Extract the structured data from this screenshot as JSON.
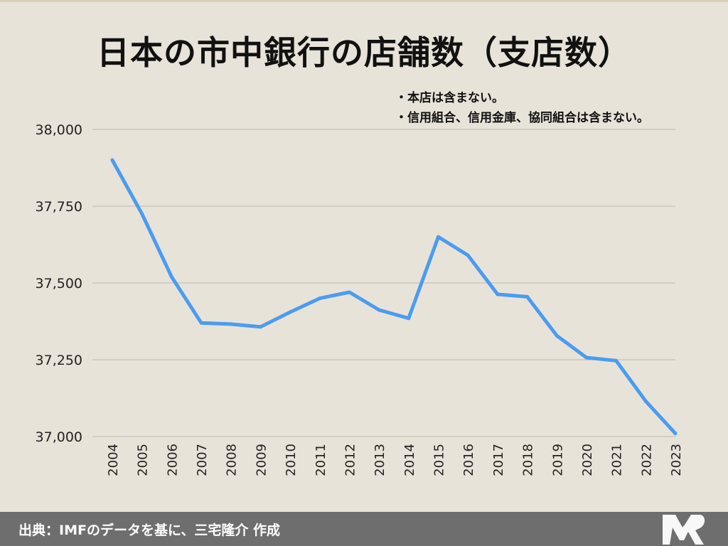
{
  "title": "日本の市中銀行の店舗数（支店数）",
  "notes": [
    "・本店は含まない。",
    "・信用組合、信用金庫、協同組合は含まない。"
  ],
  "footer": {
    "source": "出典：IMFのデータを基に、三宅隆介 作成",
    "logo_icon": "stylized-mr-logo-icon"
  },
  "colors": {
    "line": "#4b9cf0",
    "background": "#e8e3d9",
    "grid": "#bdb8ae",
    "footer": "#6e6e6e"
  },
  "chart_data": {
    "type": "line",
    "title": "日本の市中銀行の店舗数（支店数）",
    "xlabel": "",
    "ylabel": "",
    "x": [
      "2004",
      "2005",
      "2006",
      "2007",
      "2008",
      "2009",
      "2010",
      "2011",
      "2012",
      "2013",
      "2014",
      "2015",
      "2016",
      "2017",
      "2018",
      "2019",
      "2020",
      "2021",
      "2022",
      "2023"
    ],
    "series": [
      {
        "values": [
          37900,
          37725,
          37520,
          37370,
          37366,
          37357,
          37405,
          37450,
          37470,
          37412,
          37385,
          37650,
          37590,
          37463,
          37455,
          37328,
          37257,
          37247,
          37115,
          37010
        ]
      }
    ],
    "ylim": [
      37000,
      38000
    ],
    "yticks": [
      37000,
      37250,
      37500,
      37750,
      38000
    ],
    "ytick_labels": [
      "37,000",
      "37,250",
      "37,500",
      "37,750",
      "38,000"
    ],
    "grid": true,
    "legend": "none"
  }
}
